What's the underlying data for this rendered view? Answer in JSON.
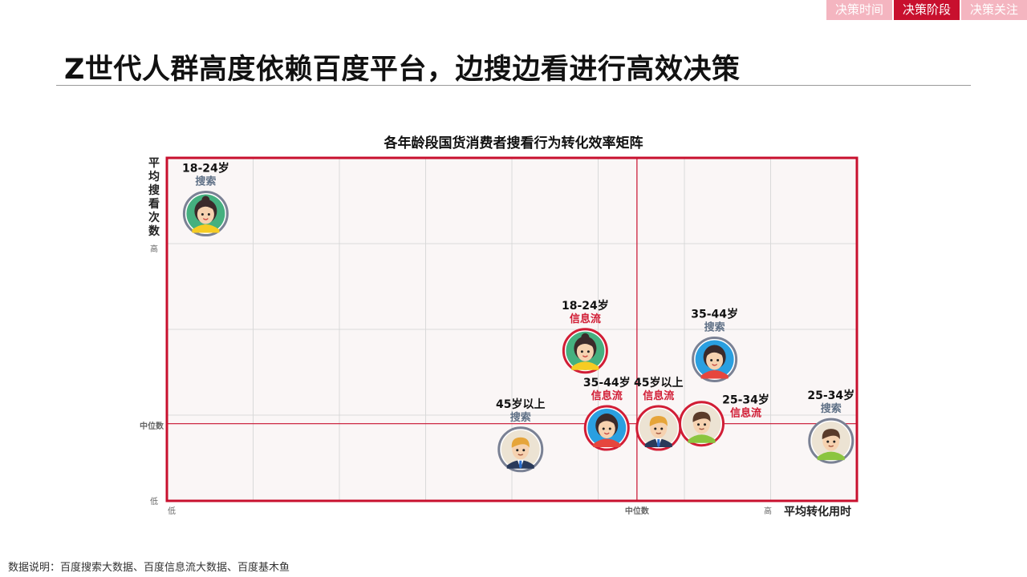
{
  "nav_tabs": [
    {
      "label": "决策时间",
      "active": false
    },
    {
      "label": "决策阶段",
      "active": true
    },
    {
      "label": "决策关注",
      "active": false
    }
  ],
  "page_title": "Z世代人群高度依赖百度平台，边搜边看进行高效决策",
  "source_note": "数据说明：百度搜索大数据、百度信息流大数据、百度基木鱼",
  "colors": {
    "accent": "#c8102e",
    "search_label": "#5f7086",
    "feed_label": "#d11d35",
    "plot_bg": "#faf6f6",
    "grid": "#d9d9d9"
  },
  "chart_data": {
    "type": "scatter",
    "title": "各年龄段国货消费者搜看行为转化效率矩阵",
    "xlabel": "平均转化用时",
    "ylabel": "平均搜看次数",
    "x_tick_labels": {
      "low": "低",
      "median": "中位数",
      "high": "高"
    },
    "y_tick_labels": {
      "low": "低",
      "median": "中位数",
      "high": "高"
    },
    "x_range": [
      0,
      8
    ],
    "y_range": [
      0,
      4
    ],
    "x_median": 5.45,
    "y_median": 0.9,
    "grid": true,
    "points": [
      {
        "age": "18-24岁",
        "channel": "搜索",
        "avatar": "girl-avatar-green",
        "x": 0.45,
        "y": 3.35
      },
      {
        "age": "18-24岁",
        "channel": "信息流",
        "avatar": "girl-avatar-green",
        "x": 4.85,
        "y": 1.75
      },
      {
        "age": "35-44岁",
        "channel": "搜索",
        "avatar": "woman-avatar-blue",
        "x": 6.35,
        "y": 1.65
      },
      {
        "age": "45岁以上",
        "channel": "搜索",
        "avatar": "man-avatar-suit",
        "x": 4.1,
        "y": 0.6
      },
      {
        "age": "35-44岁",
        "channel": "信息流",
        "avatar": "woman-avatar-blue",
        "x": 5.1,
        "y": 0.85
      },
      {
        "age": "45岁以上",
        "channel": "信息流",
        "avatar": "man-avatar-suit",
        "x": 5.7,
        "y": 0.85
      },
      {
        "age": "25-34岁",
        "channel": "信息流",
        "avatar": "man-avatar-green",
        "x": 6.2,
        "y": 0.9
      },
      {
        "age": "25-34岁",
        "channel": "搜索",
        "avatar": "man-avatar-green",
        "x": 7.7,
        "y": 0.7
      }
    ]
  }
}
